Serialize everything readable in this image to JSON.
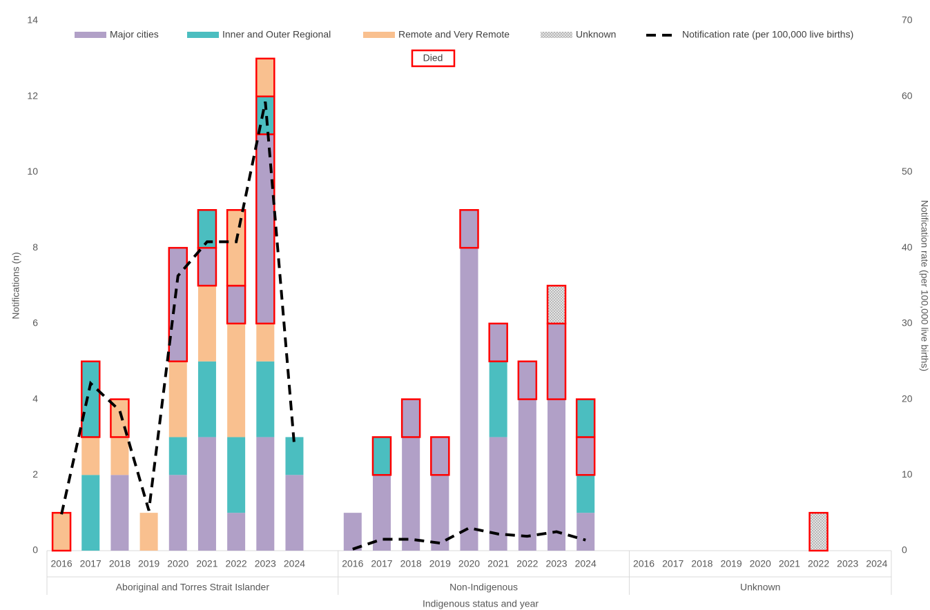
{
  "chart_data": {
    "type": "stacked-bar-line",
    "y_label": "Notifications (n)",
    "y2_label": "Notification rate (per 100,000 live births)",
    "x_label": "Indigenous status and year",
    "died_label": "Died",
    "groups": [
      {
        "name": "Aboriginal and Torres Strait Islander",
        "categories": [
          "2016",
          "2017",
          "2018",
          "2019",
          "2020",
          "2021",
          "2022",
          "2023",
          "2024",
          null
        ]
      },
      {
        "name": "Non-Indigenous",
        "categories": [
          "2016",
          "2017",
          "2018",
          "2019",
          "2020",
          "2021",
          "2022",
          "2023",
          "2024",
          null
        ]
      },
      {
        "name": "Unknown",
        "categories": [
          "2016",
          "2017",
          "2018",
          "2019",
          "2020",
          "2021",
          "2022",
          "2023",
          "2024"
        ]
      }
    ],
    "series": [
      {
        "name": "Major cities",
        "color": "#b1a0c7",
        "values": [
          0,
          0,
          2,
          0,
          2,
          3,
          1,
          3,
          2,
          null,
          1,
          2,
          3,
          2,
          8,
          3,
          4,
          4,
          1,
          null,
          0,
          0,
          0,
          0,
          0,
          0,
          0,
          0,
          0
        ],
        "died_values": [
          0,
          0,
          0,
          0,
          3,
          1,
          1,
          5,
          0,
          null,
          0,
          0,
          1,
          1,
          1,
          1,
          1,
          2,
          1,
          null,
          0,
          0,
          0,
          0,
          0,
          0,
          0,
          0,
          0
        ]
      },
      {
        "name": "Inner and Outer Regional",
        "color": "#4bbec0",
        "values": [
          0,
          2,
          0,
          0,
          1,
          2,
          2,
          2,
          1,
          null,
          0,
          0,
          0,
          0,
          0,
          2,
          0,
          0,
          1,
          null,
          0,
          0,
          0,
          0,
          0,
          0,
          0,
          0,
          0
        ],
        "died_values": [
          0,
          2,
          0,
          0,
          0,
          1,
          0,
          1,
          0,
          null,
          0,
          1,
          0,
          0,
          0,
          0,
          0,
          0,
          1,
          null,
          0,
          0,
          0,
          0,
          0,
          0,
          0,
          0,
          0
        ]
      },
      {
        "name": "Remote and Very Remote",
        "color": "#f9c08f",
        "values": [
          0,
          1,
          1,
          1,
          2,
          2,
          3,
          1,
          0,
          null,
          0,
          0,
          0,
          0,
          0,
          0,
          0,
          0,
          0,
          null,
          0,
          0,
          0,
          0,
          0,
          0,
          0,
          0,
          0
        ],
        "died_values": [
          1,
          0,
          1,
          0,
          0,
          0,
          2,
          1,
          0,
          null,
          0,
          0,
          0,
          0,
          0,
          0,
          0,
          0,
          0,
          null,
          0,
          0,
          0,
          0,
          0,
          0,
          0,
          0,
          0
        ]
      },
      {
        "name": "Unknown",
        "color": "#c8c8c8",
        "values": [
          0,
          0,
          0,
          0,
          0,
          0,
          0,
          0,
          0,
          null,
          0,
          0,
          0,
          0,
          0,
          0,
          0,
          0,
          0,
          null,
          0,
          0,
          0,
          0,
          0,
          0,
          0,
          0,
          0
        ],
        "died_values": [
          0,
          0,
          0,
          0,
          0,
          0,
          0,
          0,
          0,
          null,
          0,
          0,
          0,
          0,
          0,
          0,
          0,
          1,
          0,
          null,
          0,
          0,
          0,
          0,
          0,
          0,
          1,
          0,
          0
        ]
      }
    ],
    "line": {
      "name": "Notification rate (per 100,000 live births)",
      "color": "#000000",
      "axis": "y2",
      "values": [
        4.8,
        22.1,
        18.5,
        5.3,
        36.3,
        40.8,
        40.8,
        59.3,
        13.7,
        null,
        0.2,
        1.5,
        1.5,
        1.0,
        3.0,
        2.2,
        1.9,
        2.5,
        1.4,
        null,
        null,
        null,
        null,
        null,
        null,
        null,
        null,
        null,
        null
      ]
    },
    "died_color": "#ff0000",
    "ylim": [
      0,
      14
    ],
    "yticks": [
      0,
      2,
      4,
      6,
      8,
      10,
      12,
      14
    ],
    "y2lim": [
      0,
      70
    ],
    "y2ticks": [
      0,
      10,
      20,
      30,
      40,
      50,
      60,
      70
    ]
  }
}
